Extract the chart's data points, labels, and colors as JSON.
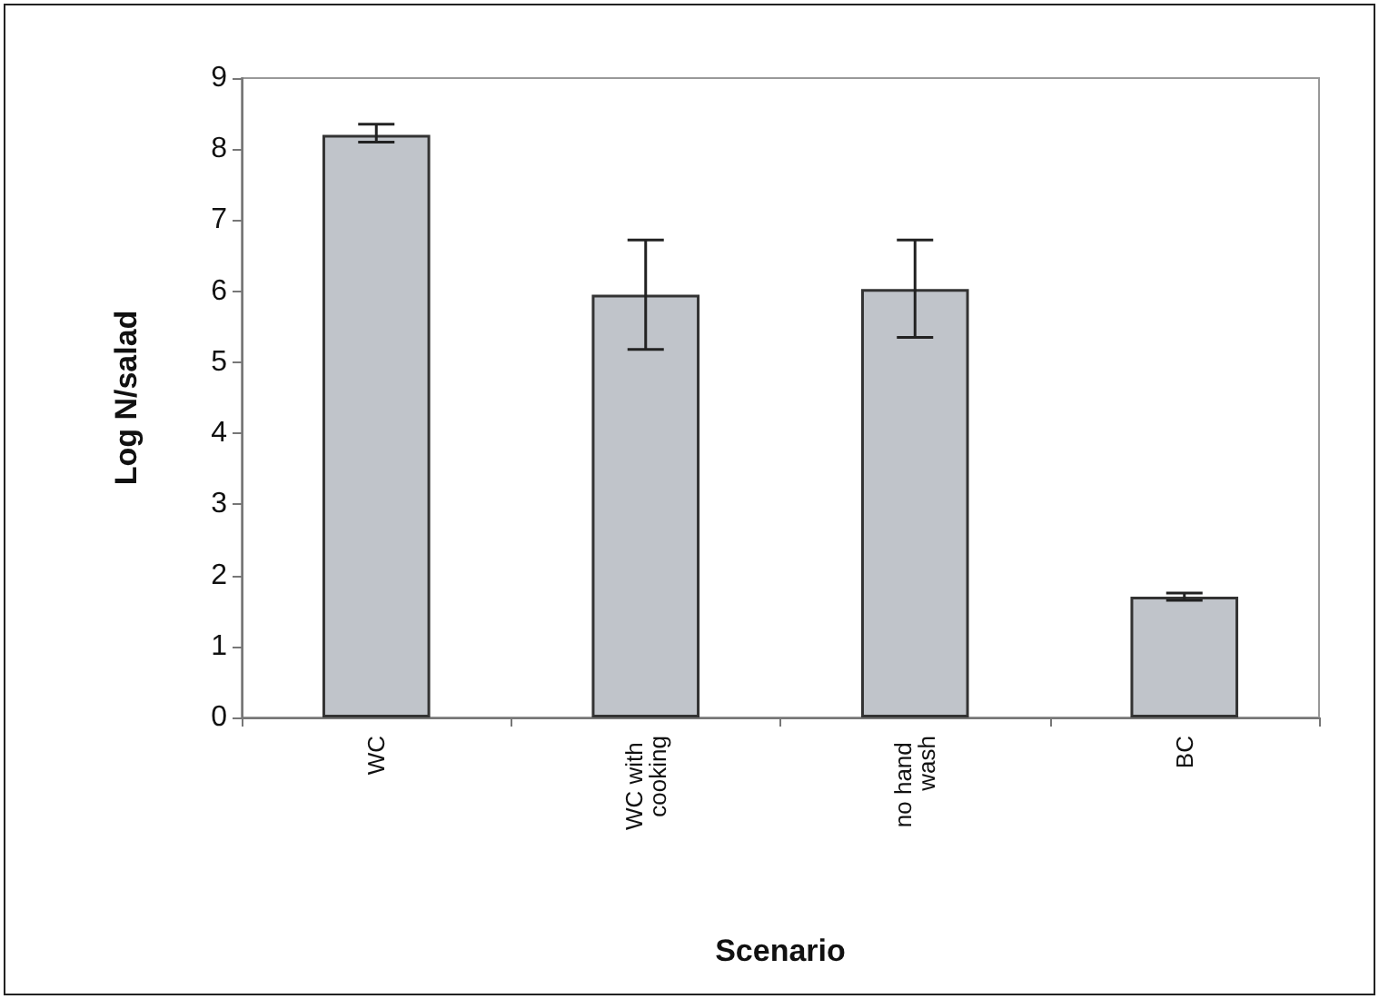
{
  "chart_data": {
    "type": "bar",
    "xlabel": "Scenario",
    "ylabel": "Log N/salad",
    "categories": [
      "WC",
      "WC with cooking",
      "no hand wash",
      "BC"
    ],
    "values": [
      8.2,
      5.95,
      6.03,
      1.7
    ],
    "errors": [
      [
        8.1,
        8.35
      ],
      [
        5.18,
        6.72
      ],
      [
        5.35,
        6.72
      ],
      [
        1.65,
        1.75
      ]
    ],
    "color": "#c0c4ca",
    "ylim": [
      0,
      9
    ],
    "yticks": [
      0,
      1,
      2,
      3,
      4,
      5,
      6,
      7,
      8,
      9
    ],
    "grid": false
  }
}
